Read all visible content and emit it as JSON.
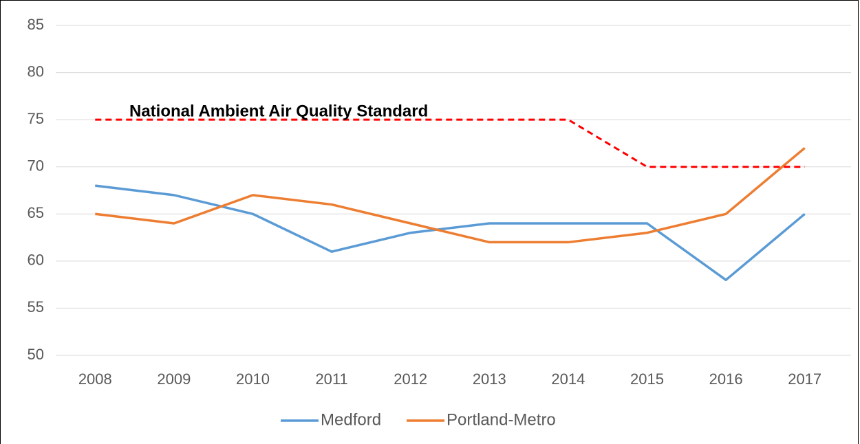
{
  "chart_data": {
    "type": "line",
    "annotation": "National  Ambient Air Quality Standard",
    "categories": [
      "2008",
      "2009",
      "2010",
      "2011",
      "2012",
      "2013",
      "2014",
      "2015",
      "2016",
      "2017"
    ],
    "series": [
      {
        "name": "Medford",
        "color": "#5b9bd5",
        "values": [
          68,
          67,
          65,
          61,
          63,
          64,
          64,
          64,
          58,
          65
        ]
      },
      {
        "name": "Portland-Metro",
        "color": "#ed7d31",
        "values": [
          65,
          64,
          67,
          66,
          64,
          62,
          62,
          63,
          65,
          72
        ]
      },
      {
        "color": "#ff0000",
        "dashed": true,
        "values": [
          75,
          75,
          75,
          75,
          75,
          75,
          75,
          70,
          70,
          70
        ]
      }
    ],
    "ylim": [
      50,
      85
    ],
    "yticks": [
      50,
      55,
      60,
      65,
      70,
      75,
      80,
      85
    ],
    "grid": true,
    "legend": "bottom"
  }
}
